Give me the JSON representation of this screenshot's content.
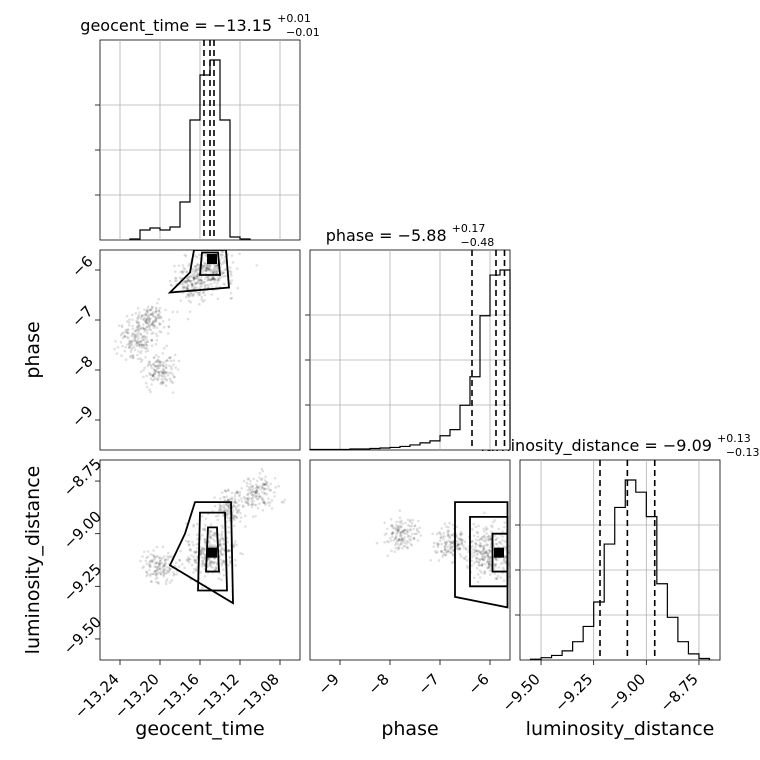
{
  "chart_data": {
    "type": "corner",
    "parameters": [
      {
        "name": "geocent_time",
        "title_name": "geocent_time",
        "median": "−13.15",
        "plus": "+0.01",
        "minus": "−0.01",
        "range": [
          -13.26,
          -13.06
        ],
        "ticks": [
          -13.24,
          -13.2,
          -13.16,
          -13.12,
          -13.08
        ],
        "tick_labels": [
          "−13.24",
          "−13.20",
          "−13.16",
          "−13.12",
          "−13.08"
        ],
        "quantiles": [
          -13.156,
          -13.15,
          -13.146
        ],
        "hist_edges": [
          -13.23,
          -13.22,
          -13.21,
          -13.2,
          -13.19,
          -13.18,
          -13.17,
          -13.16,
          -13.15,
          -13.14,
          -13.13,
          -13.12,
          -13.11
        ],
        "hist_counts": [
          1,
          10,
          12,
          10,
          13,
          38,
          120,
          165,
          180,
          120,
          3,
          1
        ]
      },
      {
        "name": "phase",
        "title_name": "phase",
        "median": "−5.88",
        "plus": "+0.17",
        "minus": "−0.48",
        "range": [
          -9.6,
          -5.6
        ],
        "ticks": [
          -9,
          -8,
          -7,
          -6
        ],
        "tick_labels": [
          "−9",
          "−8",
          "−7",
          "−6"
        ],
        "quantiles": [
          -6.36,
          -5.88,
          -5.71
        ],
        "hist_edges": [
          -9.6,
          -9.4,
          -9.2,
          -9.0,
          -8.8,
          -8.6,
          -8.4,
          -8.2,
          -8.0,
          -7.8,
          -7.6,
          -7.4,
          -7.2,
          -7.0,
          -6.8,
          -6.6,
          -6.4,
          -6.2,
          -6.0,
          -5.8,
          -5.6
        ],
        "hist_counts": [
          0.5,
          0.5,
          0.5,
          0.5,
          1,
          1,
          1.5,
          2,
          2.5,
          3.5,
          5,
          7,
          9,
          14,
          20,
          44,
          72,
          132,
          172,
          177
        ]
      },
      {
        "name": "luminosity_distance",
        "title_name": "luminosity_distance",
        "median": "−9.09",
        "plus": "+0.13",
        "minus": "−0.13",
        "range": [
          -9.6,
          -8.65
        ],
        "ticks": [
          -9.5,
          -9.25,
          -9.0,
          -8.75
        ],
        "tick_labels": [
          "−9.50",
          "−9.25",
          "−9.00",
          "−8.75"
        ],
        "quantiles": [
          -9.22,
          -9.09,
          -8.96
        ],
        "hist_edges": [
          -9.55,
          -9.5,
          -9.45,
          -9.4,
          -9.35,
          -9.3,
          -9.25,
          -9.2,
          -9.15,
          -9.1,
          -9.05,
          -9.0,
          -8.95,
          -8.9,
          -8.85,
          -8.8,
          -8.75,
          -8.7
        ],
        "hist_counts": [
          0.5,
          1.5,
          3,
          6,
          12,
          22,
          38,
          76,
          100,
          118,
          110,
          94,
          50,
          28,
          12,
          4,
          1
        ]
      }
    ],
    "pairs": [
      {
        "x": "geocent_time",
        "y": "phase",
        "ylim": [
          -9.6,
          -5.6
        ],
        "scatter_centers": [
          [
            -13.15,
            -6.0
          ],
          [
            -13.17,
            -6.3
          ],
          [
            -13.21,
            -7.0
          ],
          [
            -13.225,
            -7.4
          ],
          [
            -13.2,
            -8.0
          ]
        ],
        "contours": [
          [
            [
              -13.158,
              -5.65
            ],
            [
              -13.142,
              -5.65
            ],
            [
              -13.14,
              -6.1
            ],
            [
              -13.16,
              -6.1
            ]
          ],
          [
            [
              -13.166,
              -5.6
            ],
            [
              -13.134,
              -5.6
            ],
            [
              -13.131,
              -6.35
            ],
            [
              -13.19,
              -6.45
            ],
            [
              -13.17,
              -6.05
            ]
          ]
        ],
        "peak": [
          -13.148,
          -5.78
        ]
      },
      {
        "x": "geocent_time",
        "y": "luminosity_distance",
        "ylim": [
          -9.6,
          -8.65
        ],
        "scatter_centers": [
          [
            -13.15,
            -9.09
          ],
          [
            -13.2,
            -9.15
          ],
          [
            -13.13,
            -8.88
          ],
          [
            -13.1,
            -8.8
          ]
        ],
        "contours": [
          [
            [
              -13.152,
              -8.97
            ],
            [
              -13.143,
              -8.97
            ],
            [
              -13.141,
              -9.18
            ],
            [
              -13.154,
              -9.18
            ]
          ],
          [
            [
              -13.16,
              -8.9
            ],
            [
              -13.135,
              -8.9
            ],
            [
              -13.133,
              -9.27
            ],
            [
              -13.162,
              -9.27
            ]
          ],
          [
            [
              -13.165,
              -8.85
            ],
            [
              -13.129,
              -8.85
            ],
            [
              -13.127,
              -9.33
            ],
            [
              -13.19,
              -9.15
            ],
            [
              -13.175,
              -9.0
            ]
          ]
        ],
        "peak": [
          -13.148,
          -9.09
        ]
      },
      {
        "x": "phase",
        "y": "luminosity_distance",
        "ylim": [
          -9.6,
          -8.65
        ],
        "scatter_centers": [
          [
            -6.0,
            -9.09
          ],
          [
            -6.8,
            -9.05
          ],
          [
            -7.8,
            -9.0
          ]
        ],
        "contours": [
          [
            [
              -5.95,
              -9.0
            ],
            [
              -5.65,
              -9.0
            ],
            [
              -5.65,
              -9.18
            ],
            [
              -5.95,
              -9.18
            ]
          ],
          [
            [
              -6.4,
              -8.92
            ],
            [
              -5.65,
              -8.92
            ],
            [
              -5.65,
              -9.25
            ],
            [
              -6.4,
              -9.25
            ]
          ],
          [
            [
              -6.7,
              -8.85
            ],
            [
              -5.65,
              -8.85
            ],
            [
              -5.65,
              -9.35
            ],
            [
              -6.7,
              -9.3
            ]
          ]
        ],
        "peak": [
          -5.82,
          -9.09
        ]
      }
    ]
  }
}
